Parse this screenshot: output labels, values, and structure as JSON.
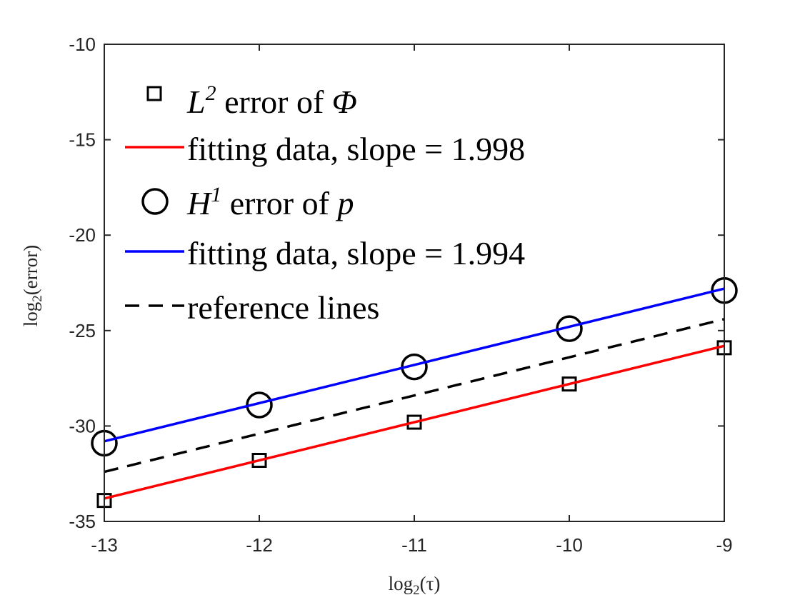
{
  "chart_data": {
    "type": "line",
    "xlabel": {
      "base": "log",
      "sub": "2",
      "arg": "(τ)"
    },
    "ylabel": {
      "base": "log",
      "sub": "2",
      "arg": "(error)"
    },
    "xlim": [
      -13,
      -9
    ],
    "ylim": [
      -35,
      -10
    ],
    "xticks": [
      -13,
      -12,
      -11,
      -10,
      -9
    ],
    "yticks": [
      -10,
      -15,
      -20,
      -25,
      -30,
      -35
    ],
    "xtick_labels": [
      "-13",
      "-12",
      "-11",
      "-10",
      "-9"
    ],
    "ytick_labels": [
      "-10",
      "-15",
      "-20",
      "-25",
      "-30",
      "-35"
    ],
    "grid": false,
    "legend_position": "top-left",
    "series": [
      {
        "key": "l2",
        "marker": "square",
        "line": "none",
        "color": "#000000",
        "x": [
          -13,
          -12,
          -11,
          -10,
          -9
        ],
        "y": [
          -33.9,
          -31.8,
          -29.8,
          -27.8,
          -25.9
        ]
      },
      {
        "key": "l2fit",
        "marker": "none",
        "line": "solid",
        "color": "#ff0000",
        "x": [
          -13,
          -9
        ],
        "y": [
          -33.8,
          -25.8
        ]
      },
      {
        "key": "h1",
        "marker": "circle",
        "line": "none",
        "color": "#000000",
        "x": [
          -13,
          -12,
          -11,
          -10,
          -9
        ],
        "y": [
          -30.9,
          -28.9,
          -26.9,
          -24.9,
          -22.9
        ]
      },
      {
        "key": "h1fit",
        "marker": "none",
        "line": "solid",
        "color": "#0000ff",
        "x": [
          -13,
          -9
        ],
        "y": [
          -30.8,
          -22.8
        ]
      },
      {
        "key": "ref",
        "marker": "none",
        "line": "dashed",
        "color": "#000000",
        "x": [
          -13,
          -9
        ],
        "y": [
          -32.4,
          -24.4
        ]
      }
    ],
    "legend": [
      {
        "pre": "L",
        "sup": "2",
        "mid": " error of ",
        "sym": "Φ"
      },
      {
        "text": "fitting data, slope = 1.998"
      },
      {
        "pre": "H",
        "sup": "1",
        "mid": " error of ",
        "sym": "p"
      },
      {
        "text": "fitting data, slope = 1.994"
      },
      {
        "text": "reference lines"
      }
    ]
  }
}
